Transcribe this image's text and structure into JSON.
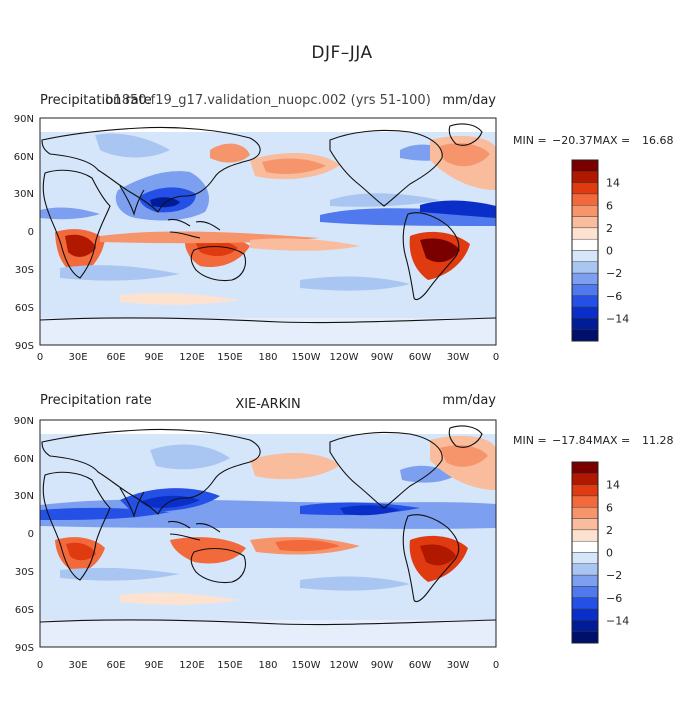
{
  "figure": {
    "title": "DJF–JJA"
  },
  "panels": [
    {
      "id": "model",
      "left_label": "Precipitation rate",
      "center_label": "b1850.f19_g17.validation_nuopc.002 (yrs 51-100)",
      "right_label": "mm/day",
      "stats": {
        "min_label": "MIN =",
        "min": "−20.37",
        "max_label": "MAX =",
        "max": "16.68"
      }
    },
    {
      "id": "obs",
      "left_label": "Precipitation rate",
      "center_label": "XIE-ARKIN",
      "right_label": "mm/day",
      "stats": {
        "min_label": "MIN =",
        "min": "−17.84",
        "max_label": "MAX =",
        "max": "11.28"
      }
    }
  ],
  "axes": {
    "lon_ticks": [
      "0",
      "30E",
      "60E",
      "90E",
      "120E",
      "150E",
      "180",
      "150W",
      "120W",
      "90W",
      "60W",
      "30W",
      "0"
    ],
    "lat_ticks": [
      "90N",
      "60N",
      "30N",
      "0",
      "30S",
      "60S",
      "90S"
    ]
  },
  "colorbar": {
    "levels": [
      "14",
      "6",
      "2",
      "0",
      "−2",
      "−6",
      "−14"
    ],
    "colors": [
      "#7a0000",
      "#b01800",
      "#e03a10",
      "#f26a3c",
      "#f6956c",
      "#f9bc9c",
      "#fde2cf",
      "#ffffff",
      "#d6e6fa",
      "#a9c6f2",
      "#7d9ff0",
      "#4f79ec",
      "#2450e6",
      "#0a2fc8",
      "#001c96",
      "#000f6a"
    ]
  }
}
